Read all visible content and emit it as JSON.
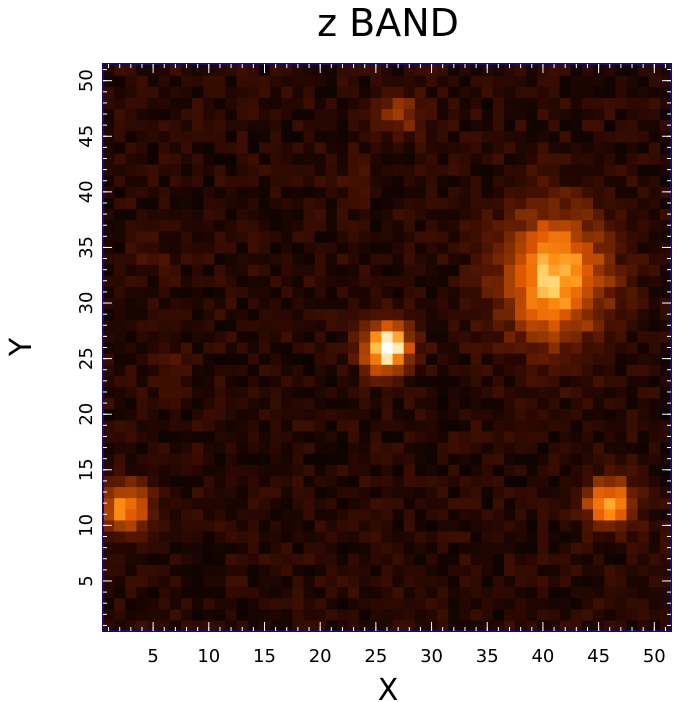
{
  "chart_data": {
    "type": "heatmap",
    "title": "z BAND",
    "xlabel": "X",
    "ylabel": "Y",
    "xlim": [
      0.5,
      51.5
    ],
    "ylim": [
      0.5,
      51.5
    ],
    "xticks": [
      5,
      10,
      15,
      20,
      25,
      30,
      35,
      40,
      45,
      50
    ],
    "yticks": [
      5,
      10,
      15,
      20,
      25,
      30,
      35,
      40,
      45,
      50
    ],
    "grid_size": [
      51,
      51
    ],
    "colormap": [
      "#000000",
      "#2a0800",
      "#5a1800",
      "#9a3a00",
      "#e05800",
      "#ff8c10",
      "#ffd060",
      "#ffffff"
    ],
    "frame_color": "#1a0a66",
    "background_level": 0.12,
    "sources": [
      {
        "x": 41,
        "y": 32.5,
        "peak": 0.72,
        "sigma_x": 3.3,
        "sigma_y": 4.0
      },
      {
        "x": 26,
        "y": 26,
        "peak": 0.95,
        "sigma_x": 1.5,
        "sigma_y": 1.5
      },
      {
        "x": 46,
        "y": 12,
        "peak": 0.62,
        "sigma_x": 1.6,
        "sigma_y": 1.6
      },
      {
        "x": 2.5,
        "y": 11.5,
        "peak": 0.58,
        "sigma_x": 1.6,
        "sigma_y": 1.6
      },
      {
        "x": 27,
        "y": 47,
        "peak": 0.28,
        "sigma_x": 1.4,
        "sigma_y": 1.4
      },
      {
        "x": 23,
        "y": 41,
        "peak": 0.1,
        "sigma_x": 1.2,
        "sigma_y": 1.2
      },
      {
        "x": 7,
        "y": 24.5,
        "peak": 0.1,
        "sigma_x": 1.2,
        "sigma_y": 1.2
      },
      {
        "x": 5,
        "y": 34,
        "peak": 0.08,
        "sigma_x": 1.2,
        "sigma_y": 1.2
      }
    ]
  }
}
